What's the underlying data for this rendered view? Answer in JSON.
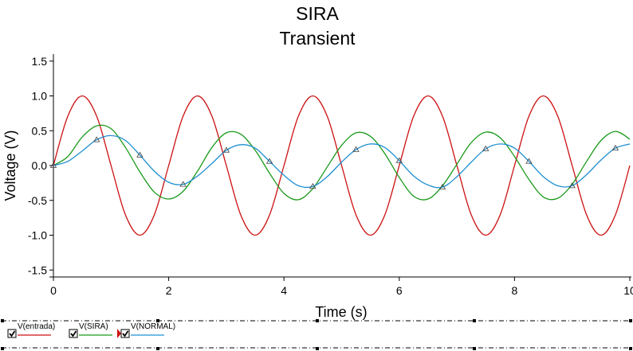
{
  "chart_data": {
    "type": "line",
    "title": "SIRA",
    "subtitle": "Transient",
    "xlabel": "Time (s)",
    "ylabel": "Voltage (V)",
    "xlim": [
      0,
      10
    ],
    "ylim": [
      -1.6,
      1.6
    ],
    "xticks": [
      0,
      2,
      4,
      6,
      8,
      10
    ],
    "yticks": [
      -1.5,
      -1.0,
      -0.5,
      0.0,
      0.5,
      1.0,
      1.5
    ],
    "xtick_labels": [
      "0",
      "2",
      "4",
      "6",
      "8",
      "10"
    ],
    "ytick_labels": [
      "-1.5",
      "-1.0",
      "-0.5",
      "0.0",
      "0.5",
      "1.0",
      "1.5"
    ],
    "grid": false,
    "legend_position": "bottom",
    "series": [
      {
        "name": "V(entrada)",
        "color": "#cc1111",
        "marker": "none",
        "x": [
          0,
          0.25,
          0.5,
          0.75,
          1.0,
          1.25,
          1.5,
          1.75,
          2.0,
          2.25,
          2.5,
          2.75,
          3.0,
          3.25,
          3.5,
          3.75,
          4.0,
          4.25,
          4.5,
          4.75,
          5.0,
          5.25,
          5.5,
          5.75,
          6.0,
          6.25,
          6.5,
          6.75,
          7.0,
          7.25,
          7.5,
          7.75,
          8.0,
          8.25,
          8.5,
          8.75,
          9.0,
          9.25,
          9.5,
          9.75,
          10.0
        ],
        "y": [
          0.0,
          0.71,
          1.0,
          0.71,
          0.0,
          -0.71,
          -1.0,
          -0.71,
          0.0,
          0.71,
          1.0,
          0.71,
          0.0,
          -0.71,
          -1.0,
          -0.71,
          0.0,
          0.71,
          1.0,
          0.71,
          0.0,
          -0.71,
          -1.0,
          -0.71,
          0.0,
          0.71,
          1.0,
          0.71,
          0.0,
          -0.71,
          -1.0,
          -0.71,
          0.0,
          0.71,
          1.0,
          0.71,
          0.0,
          -0.71,
          -1.0,
          -0.71,
          0.0
        ]
      },
      {
        "name": "V(SIRA)",
        "color": "#1a9a1a",
        "marker": "none",
        "x": [
          0,
          0.25,
          0.5,
          0.75,
          1.0,
          1.25,
          1.5,
          1.75,
          2.0,
          2.25,
          2.5,
          2.75,
          3.0,
          3.25,
          3.5,
          3.75,
          4.0,
          4.25,
          4.5,
          4.75,
          5.0,
          5.25,
          5.5,
          5.75,
          6.0,
          6.25,
          6.5,
          6.75,
          7.0,
          7.25,
          7.5,
          7.75,
          8.0,
          8.25,
          8.5,
          8.75,
          9.0,
          9.25,
          9.5,
          9.75,
          10.0
        ],
        "y": [
          0.0,
          0.13,
          0.41,
          0.57,
          0.53,
          0.26,
          -0.09,
          -0.38,
          -0.48,
          -0.37,
          -0.08,
          0.26,
          0.47,
          0.45,
          0.22,
          -0.11,
          -0.4,
          -0.49,
          -0.33,
          -0.02,
          0.29,
          0.47,
          0.42,
          0.17,
          -0.17,
          -0.44,
          -0.48,
          -0.29,
          0.02,
          0.33,
          0.48,
          0.4,
          0.13,
          -0.2,
          -0.45,
          -0.47,
          -0.27,
          0.06,
          0.36,
          0.49,
          0.38
        ]
      },
      {
        "name": "V(NORMAL)",
        "color": "#1f8fd0",
        "marker": "triangle",
        "x": [
          0,
          0.25,
          0.5,
          0.75,
          1.0,
          1.25,
          1.5,
          1.75,
          2.0,
          2.25,
          2.5,
          2.75,
          3.0,
          3.25,
          3.5,
          3.75,
          4.0,
          4.25,
          4.5,
          4.75,
          5.0,
          5.25,
          5.5,
          5.75,
          6.0,
          6.25,
          6.5,
          6.75,
          7.0,
          7.25,
          7.5,
          7.75,
          8.0,
          8.25,
          8.5,
          8.75,
          9.0,
          9.25,
          9.5,
          9.75,
          10.0
        ],
        "y": [
          0.0,
          0.06,
          0.21,
          0.37,
          0.43,
          0.36,
          0.15,
          -0.08,
          -0.24,
          -0.27,
          -0.15,
          0.03,
          0.22,
          0.3,
          0.25,
          0.06,
          -0.14,
          -0.29,
          -0.3,
          -0.16,
          0.05,
          0.23,
          0.31,
          0.26,
          0.07,
          -0.15,
          -0.28,
          -0.31,
          -0.16,
          0.05,
          0.24,
          0.31,
          0.25,
          0.06,
          -0.16,
          -0.29,
          -0.29,
          -0.13,
          0.08,
          0.25,
          0.31
        ]
      }
    ]
  },
  "legend": {
    "items": [
      {
        "label": "V(entrada)",
        "color": "#cc1111",
        "checked": true
      },
      {
        "label": "V(SIRA)",
        "color": "#1a9a1a",
        "checked": true
      },
      {
        "label": "V(NORMAL)",
        "color": "#1f8fd0",
        "checked": true
      }
    ]
  }
}
